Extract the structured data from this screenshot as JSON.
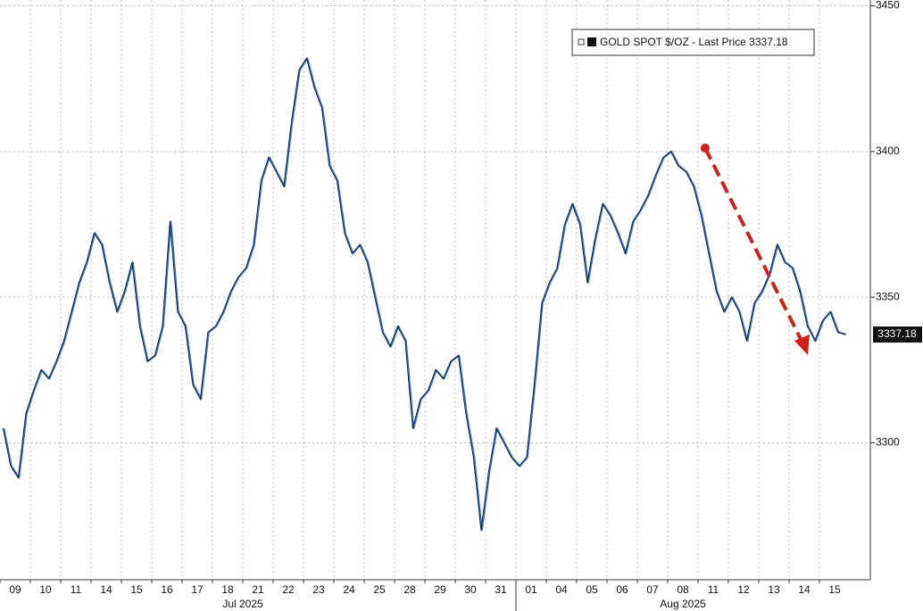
{
  "chart_data": {
    "type": "line",
    "series": [
      {
        "name": "GOLD SPOT $/OZ - Last Price",
        "color": "#2f6bc0",
        "values": [
          3305,
          3292,
          3288,
          3310,
          3318,
          3325,
          3322,
          3328,
          3335,
          3345,
          3355,
          3362,
          3372,
          3368,
          3355,
          3345,
          3352,
          3362,
          3340,
          3328,
          3330,
          3340,
          3376,
          3345,
          3340,
          3320,
          3315,
          3338,
          3340,
          3345,
          3352,
          3357,
          3360,
          3368,
          3390,
          3398,
          3393,
          3388,
          3410,
          3428,
          3432,
          3422,
          3415,
          3395,
          3390,
          3372,
          3365,
          3368,
          3362,
          3350,
          3338,
          3333,
          3340,
          3335,
          3305,
          3315,
          3318,
          3325,
          3322,
          3328,
          3330,
          3310,
          3295,
          3270,
          3290,
          3305,
          3300,
          3295,
          3292,
          3295,
          3320,
          3348,
          3355,
          3360,
          3375,
          3382,
          3375,
          3355,
          3370,
          3382,
          3378,
          3372,
          3365,
          3376,
          3380,
          3385,
          3392,
          3398,
          3400,
          3395,
          3393,
          3388,
          3378,
          3365,
          3352,
          3345,
          3350,
          3345,
          3335,
          3348,
          3352,
          3358,
          3368,
          3362,
          3360,
          3352,
          3340,
          3335,
          3342,
          3345,
          3338,
          3337.18
        ]
      }
    ],
    "categories": [
      "09",
      null,
      null,
      null,
      "10",
      null,
      null,
      null,
      "11",
      null,
      null,
      null,
      "14",
      null,
      null,
      null,
      "15",
      null,
      null,
      null,
      "16",
      null,
      null,
      null,
      "17",
      null,
      null,
      null,
      "18",
      null,
      null,
      null,
      "21",
      null,
      null,
      null,
      "22",
      null,
      null,
      null,
      "23",
      null,
      null,
      null,
      "24",
      null,
      null,
      null,
      "25",
      null,
      null,
      null,
      "28",
      null,
      null,
      null,
      "29",
      null,
      null,
      null,
      "30",
      null,
      null,
      null,
      "31",
      null,
      null,
      null,
      "01",
      null,
      null,
      null,
      "04",
      null,
      null,
      null,
      "05",
      null,
      null,
      null,
      "06",
      null,
      null,
      null,
      "07",
      null,
      null,
      null,
      "08",
      null,
      null,
      null,
      "11",
      null,
      null,
      null,
      "12",
      null,
      null,
      null,
      "13",
      null,
      null,
      null,
      "14",
      null,
      null,
      null,
      "15",
      null,
      null,
      null
    ],
    "month_labels": [
      "Jul 2025",
      "Aug 2025"
    ],
    "last_price": 3337.18,
    "ylim": [
      3253,
      3452
    ],
    "yticks": [
      3300,
      3350,
      3400,
      3450
    ],
    "grid": true
  }
}
